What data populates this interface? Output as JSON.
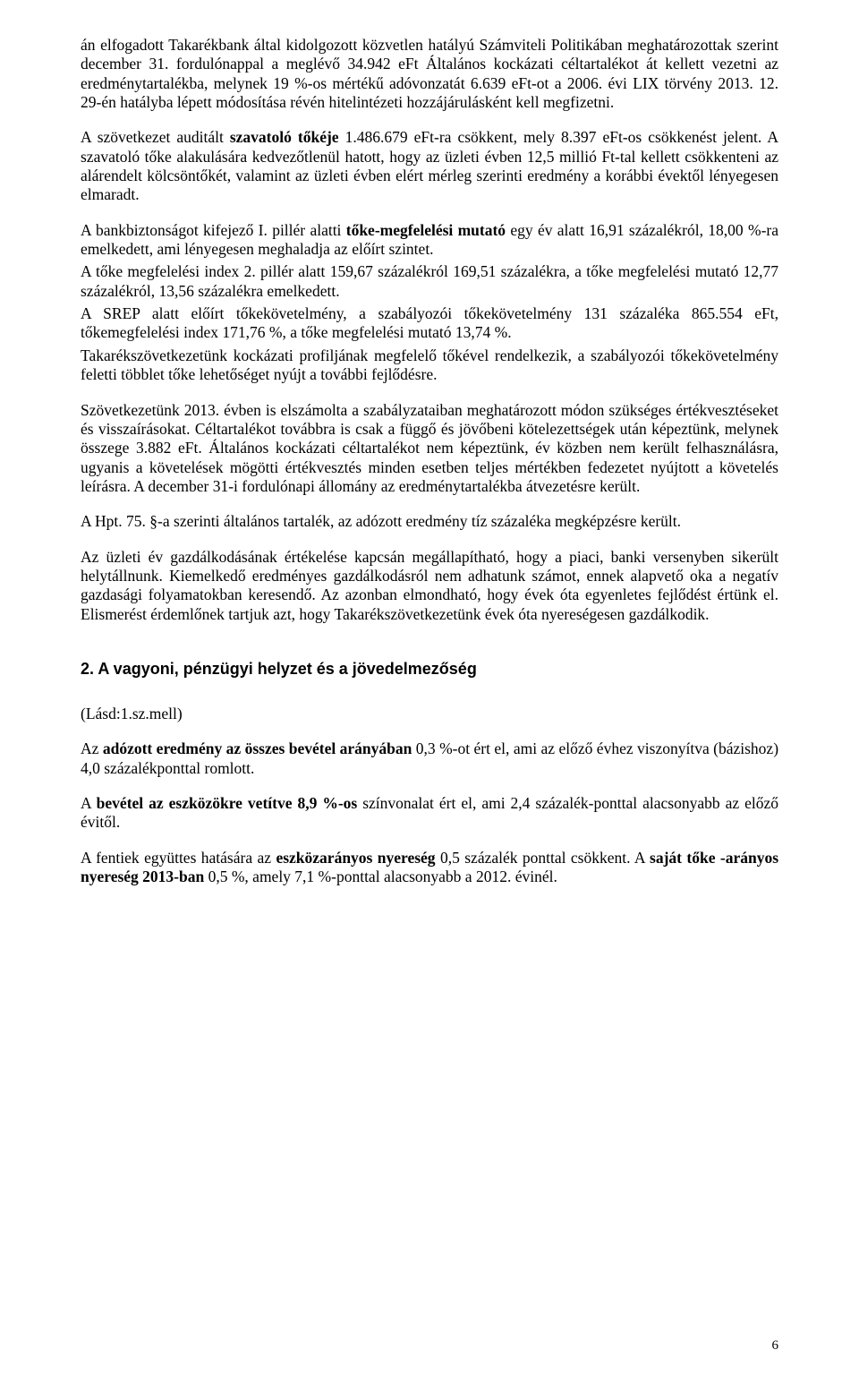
{
  "p1": "án elfogadott Takarékbank által kidolgozott közvetlen hatályú Számviteli Politikában meghatározottak szerint december 31. fordulónappal a meglévő 34.942 eFt Általános kockázati céltartalékot át kellett vezetni az eredménytartalékba, melynek 19 %-os mértékű adóvonzatát 6.639 eFt-ot a 2006. évi LIX törvény  2013. 12. 29-én hatályba lépett módosítása révén hitelintézeti hozzájárulásként kell megfizetni.",
  "p2a": "A szövetkezet auditált ",
  "p2b": "szavatoló tőkéje",
  "p2c": " 1.486.679 eFt-ra csökkent, mely 8.397 eFt-os csökkenést jelent. A szavatoló tőke alakulására kedvezőtlenül hatott, hogy az üzleti évben 12,5 millió Ft-tal kellett csökkenteni az alárendelt kölcsöntőkét, valamint az üzleti évben elért mérleg szerinti eredmény a korábbi évektől lényegesen elmaradt.",
  "p3a": "A bankbiztonságot kifejező I. pillér alatti ",
  "p3b": "tőke-megfelelési mutató",
  "p3c": " egy év alatt 16,91 százalékról, 18,00 %-ra  emelkedett, ami lényegesen meghaladja az előírt szintet.",
  "p4": "A tőke megfelelési index 2. pillér alatt 159,67 százalékról 169,51 százalékra, a tőke megfelelési mutató 12,77 százalékról, 13,56 százalékra  emelkedett.",
  "p5": "A SREP alatt előírt tőkekövetelmény, a szabályozói tőkekövetelmény 131 százaléka 865.554 eFt, tőkemegfelelési index 171,76 %, a tőke megfelelési mutató 13,74 %.",
  "p6": "Takarékszövetkezetünk kockázati profiljának megfelelő tőkével rendelkezik, a szabályozói tőkekövetelmény feletti többlet tőke lehetőséget nyújt a további fejlődésre.",
  "p7": "Szövetkezetünk 2013. évben is elszámolta a szabályzataiban meghatározott módon szükséges értékvesztéseket és visszaírásokat. Céltartalékot továbbra is csak a függő és jövőbeni kötelezettségek után képeztünk, melynek összege 3.882 eFt.  Általános kockázati céltartalékot nem képeztünk,  év közben nem került felhasználásra, ugyanis a követelések mögötti értékvesztés minden esetben teljes mértékben fedezetet nyújtott a  követelés leírásra.  A december 31-i fordulónapi állomány  az eredménytartalékba átvezetésre került.",
  "p8": "A Hpt. 75. §-a szerinti általános tartalék, az adózott eredmény tíz százaléka megképzésre került.",
  "p9": "Az üzleti év gazdálkodásának értékelése kapcsán megállapítható, hogy a piaci, banki versenyben sikerült helytállnunk. Kiemelkedő eredményes gazdálkodásról nem adhatunk számot, ennek alapvető oka a negatív gazdasági folyamatokban keresendő. Az azonban elmondható, hogy évek óta egyenletes fejlődést értünk el. Elismerést érdemlőnek tartjuk azt, hogy Takarékszövetkezetünk évek óta nyereségesen gazdálkodik.",
  "h1": "2. A vagyoni, pénzügyi helyzet és a jövedelmezőség",
  "p10": "(Lásd:1.sz.mell)",
  "p11a": "Az ",
  "p11b": "adózott eredmény az összes bevétel arányában",
  "p11c": " 0,3 %-ot ért el, ami az előző évhez viszonyítva (bázishoz) 4,0 százalékponttal romlott.",
  "p12a": "A ",
  "p12b": "bevétel az eszközökre vetítve 8,9 %-os",
  "p12c": " színvonalat ért el, ami  2,4 százalék-ponttal alacsonyabb  az előző évitől.",
  "p13a": "A fentiek együttes hatására az ",
  "p13b": "eszközarányos nyereség",
  "p13c": " 0,5 százalék ponttal csökkent.  A ",
  "p13d": "saját tőke -arányos nyereség 2013-ban",
  "p13e": " 0,5 %, amely 7,1  %-ponttal alacsonyabb a 2012. évinél.",
  "pageNumber": "6"
}
